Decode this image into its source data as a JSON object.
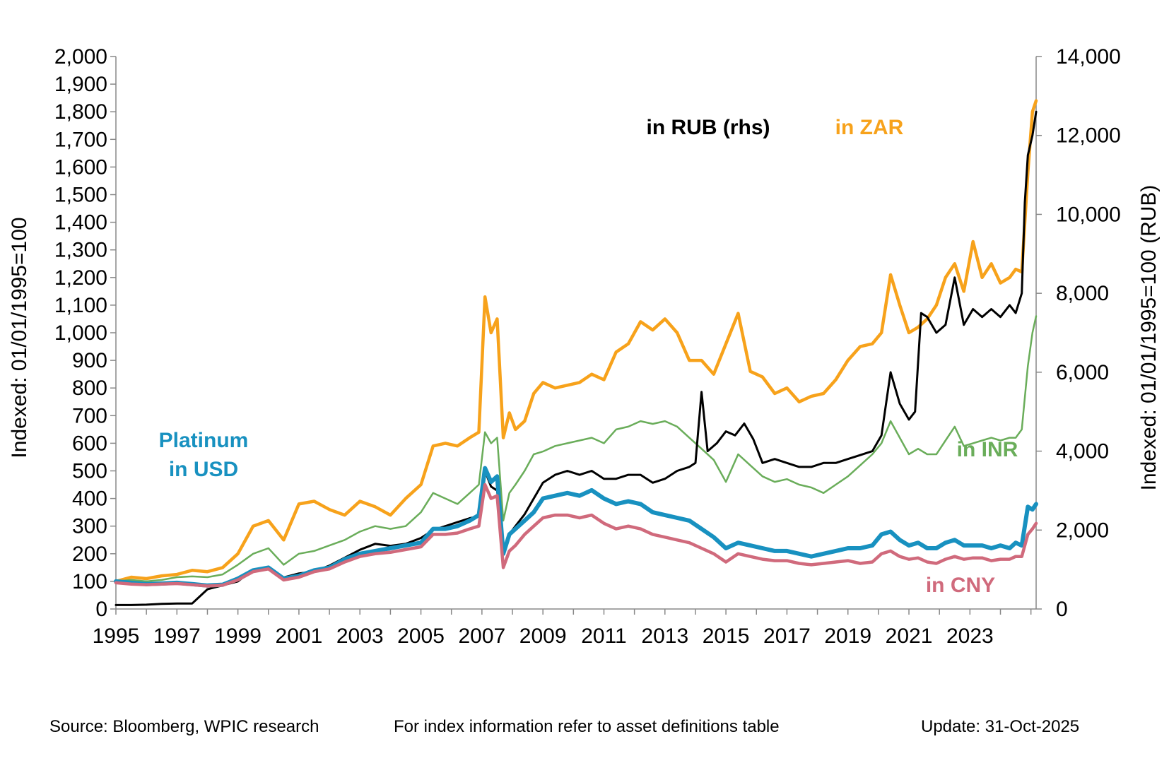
{
  "colors": {
    "usd": "#1891C0",
    "zar": "#F7A21B",
    "inr": "#6AAD5A",
    "cny": "#D06A7C",
    "rub": "#000000"
  },
  "labels": {
    "platinum_usd_line1": "Platinum",
    "platinum_usd_line2": "in USD",
    "rub": "in RUB (rhs)",
    "zar": "in ZAR",
    "inr": "in INR",
    "cny": "in CNY"
  },
  "footer": {
    "source": "Source: Bloomberg, WPIC research",
    "note": "For index information refer to asset definitions table",
    "update": "Update: 31-Oct-2025"
  },
  "chart_data": {
    "type": "line",
    "ylabel": "Indexed:  01/01/1995=100",
    "y2label": "Indexed:  01/01/1995=100  (RUB)",
    "ylim": [
      0,
      2000
    ],
    "y2lim": [
      0,
      14000
    ],
    "yticks": [
      "0",
      "100",
      "200",
      "300",
      "400",
      "500",
      "600",
      "700",
      "800",
      "900",
      "1,000",
      "1,100",
      "1,200",
      "1,300",
      "1,400",
      "1,500",
      "1,600",
      "1,700",
      "1,800",
      "1,900",
      "2,000"
    ],
    "y2ticks": [
      "0",
      "2,000",
      "4,000",
      "6,000",
      "8,000",
      "10,000",
      "12,000",
      "14,000"
    ],
    "xticks": [
      "1995",
      "1997",
      "1999",
      "2001",
      "2003",
      "2005",
      "2007",
      "2009",
      "2011",
      "2013",
      "2015",
      "2017",
      "2019",
      "2021",
      "2023"
    ],
    "xlim": [
      1995.0,
      2025.17
    ],
    "grid": false,
    "series": [
      {
        "name": "in ZAR",
        "axis": "left",
        "key": "zar",
        "x": [
          1995.0,
          1995.5,
          1996.0,
          1996.5,
          1997.0,
          1997.5,
          1998.0,
          1998.5,
          1999.0,
          1999.5,
          2000.0,
          2000.5,
          2001.0,
          2001.5,
          2002.0,
          2002.5,
          2003.0,
          2003.5,
          2004.0,
          2004.5,
          2005.0,
          2005.4,
          2005.8,
          2006.2,
          2006.6,
          2006.9,
          2007.1,
          2007.3,
          2007.5,
          2007.7,
          2007.9,
          2008.1,
          2008.4,
          2008.7,
          2009.0,
          2009.4,
          2009.8,
          2010.2,
          2010.6,
          2011.0,
          2011.4,
          2011.8,
          2012.2,
          2012.6,
          2013.0,
          2013.4,
          2013.8,
          2014.2,
          2014.6,
          2015.0,
          2015.4,
          2015.8,
          2016.2,
          2016.6,
          2017.0,
          2017.4,
          2017.8,
          2018.2,
          2018.6,
          2019.0,
          2019.4,
          2019.8,
          2020.1,
          2020.4,
          2020.7,
          2021.0,
          2021.3,
          2021.6,
          2021.9,
          2022.2,
          2022.5,
          2022.8,
          2023.1,
          2023.4,
          2023.7,
          2024.0,
          2024.3,
          2024.5,
          2024.7,
          2024.9,
          2025.05,
          2025.17
        ],
        "y": [
          100,
          115,
          110,
          120,
          125,
          140,
          135,
          150,
          200,
          300,
          320,
          250,
          380,
          390,
          360,
          340,
          390,
          370,
          340,
          400,
          450,
          590,
          600,
          590,
          620,
          640,
          1130,
          1000,
          1050,
          620,
          710,
          650,
          680,
          780,
          820,
          800,
          810,
          820,
          850,
          830,
          930,
          960,
          1040,
          1010,
          1050,
          1000,
          900,
          900,
          850,
          960,
          1070,
          860,
          840,
          780,
          800,
          750,
          770,
          780,
          830,
          900,
          950,
          960,
          1000,
          1210,
          1100,
          1000,
          1020,
          1050,
          1100,
          1200,
          1250,
          1150,
          1330,
          1200,
          1250,
          1180,
          1200,
          1230,
          1220,
          1580,
          1800,
          1840
        ]
      },
      {
        "name": "in INR",
        "axis": "left",
        "key": "inr",
        "x": [
          1995.0,
          1995.5,
          1996.0,
          1996.5,
          1997.0,
          1997.5,
          1998.0,
          1998.5,
          1999.0,
          1999.5,
          2000.0,
          2000.5,
          2001.0,
          2001.5,
          2002.0,
          2002.5,
          2003.0,
          2003.5,
          2004.0,
          2004.5,
          2005.0,
          2005.4,
          2005.8,
          2006.2,
          2006.6,
          2006.9,
          2007.1,
          2007.3,
          2007.5,
          2007.7,
          2007.9,
          2008.1,
          2008.4,
          2008.7,
          2009.0,
          2009.4,
          2009.8,
          2010.2,
          2010.6,
          2011.0,
          2011.4,
          2011.8,
          2012.2,
          2012.6,
          2013.0,
          2013.4,
          2013.8,
          2014.2,
          2014.6,
          2015.0,
          2015.4,
          2015.8,
          2016.2,
          2016.6,
          2017.0,
          2017.4,
          2017.8,
          2018.2,
          2018.6,
          2019.0,
          2019.4,
          2019.8,
          2020.1,
          2020.4,
          2020.7,
          2021.0,
          2021.3,
          2021.6,
          2021.9,
          2022.2,
          2022.5,
          2022.8,
          2023.1,
          2023.4,
          2023.7,
          2024.0,
          2024.3,
          2024.5,
          2024.7,
          2024.9,
          2025.05,
          2025.17
        ],
        "y": [
          100,
          105,
          100,
          105,
          115,
          118,
          115,
          125,
          160,
          200,
          220,
          160,
          200,
          210,
          230,
          250,
          280,
          300,
          290,
          300,
          350,
          420,
          400,
          380,
          420,
          450,
          640,
          600,
          620,
          320,
          420,
          450,
          500,
          560,
          570,
          590,
          600,
          610,
          620,
          600,
          650,
          660,
          680,
          670,
          680,
          660,
          620,
          580,
          540,
          460,
          560,
          520,
          480,
          460,
          470,
          450,
          440,
          420,
          450,
          480,
          520,
          560,
          600,
          680,
          620,
          560,
          580,
          560,
          560,
          610,
          660,
          590,
          600,
          610,
          620,
          610,
          620,
          620,
          650,
          880,
          1000,
          1060
        ]
      },
      {
        "name": "in RUB (rhs)",
        "axis": "right",
        "key": "rub",
        "x": [
          1995.0,
          1995.5,
          1996.0,
          1996.5,
          1997.0,
          1997.5,
          1998.0,
          1998.5,
          1999.0,
          1999.5,
          2000.0,
          2000.5,
          2001.0,
          2001.5,
          2002.0,
          2002.5,
          2003.0,
          2003.5,
          2004.0,
          2004.5,
          2005.0,
          2005.4,
          2005.8,
          2006.2,
          2006.6,
          2006.9,
          2007.1,
          2007.3,
          2007.5,
          2007.7,
          2007.9,
          2008.1,
          2008.4,
          2008.7,
          2009.0,
          2009.4,
          2009.8,
          2010.2,
          2010.6,
          2011.0,
          2011.4,
          2011.8,
          2012.2,
          2012.6,
          2013.0,
          2013.4,
          2013.8,
          2014.0,
          2014.2,
          2014.4,
          2014.7,
          2015.0,
          2015.3,
          2015.6,
          2015.9,
          2016.2,
          2016.6,
          2017.0,
          2017.4,
          2017.8,
          2018.2,
          2018.6,
          2019.0,
          2019.4,
          2019.8,
          2020.1,
          2020.4,
          2020.7,
          2021.0,
          2021.2,
          2021.4,
          2021.6,
          2021.9,
          2022.2,
          2022.5,
          2022.8,
          2023.1,
          2023.4,
          2023.7,
          2024.0,
          2024.3,
          2024.5,
          2024.7,
          2024.8,
          2024.9,
          2025.05,
          2025.17
        ],
        "y": [
          100,
          100,
          110,
          130,
          140,
          140,
          500,
          600,
          700,
          1000,
          1050,
          800,
          900,
          950,
          1100,
          1300,
          1500,
          1650,
          1600,
          1650,
          1800,
          2000,
          2100,
          2200,
          2300,
          2350,
          3500,
          3100,
          3000,
          1500,
          1900,
          2100,
          2400,
          2800,
          3200,
          3400,
          3500,
          3400,
          3500,
          3300,
          3300,
          3400,
          3400,
          3200,
          3300,
          3500,
          3600,
          3700,
          5500,
          4000,
          4200,
          4500,
          4400,
          4700,
          4300,
          3700,
          3800,
          3700,
          3600,
          3600,
          3700,
          3700,
          3800,
          3900,
          4000,
          4400,
          6000,
          5200,
          4800,
          5000,
          7500,
          7400,
          7000,
          7200,
          8400,
          7200,
          7600,
          7400,
          7600,
          7400,
          7700,
          7500,
          8000,
          10300,
          11500,
          12000,
          12600
        ]
      },
      {
        "name": "Platinum in USD",
        "axis": "left",
        "key": "usd",
        "x": [
          1995.0,
          1995.5,
          1996.0,
          1996.5,
          1997.0,
          1997.5,
          1998.0,
          1998.5,
          1999.0,
          1999.5,
          2000.0,
          2000.5,
          2001.0,
          2001.5,
          2002.0,
          2002.5,
          2003.0,
          2003.5,
          2004.0,
          2004.5,
          2005.0,
          2005.4,
          2005.8,
          2006.2,
          2006.6,
          2006.9,
          2007.1,
          2007.3,
          2007.5,
          2007.7,
          2007.9,
          2008.1,
          2008.4,
          2008.7,
          2009.0,
          2009.4,
          2009.8,
          2010.2,
          2010.6,
          2011.0,
          2011.4,
          2011.8,
          2012.2,
          2012.6,
          2013.0,
          2013.4,
          2013.8,
          2014.2,
          2014.6,
          2015.0,
          2015.4,
          2015.8,
          2016.2,
          2016.6,
          2017.0,
          2017.4,
          2017.8,
          2018.2,
          2018.6,
          2019.0,
          2019.4,
          2019.8,
          2020.1,
          2020.4,
          2020.7,
          2021.0,
          2021.3,
          2021.6,
          2021.9,
          2022.2,
          2022.5,
          2022.8,
          2023.1,
          2023.4,
          2023.7,
          2024.0,
          2024.3,
          2024.5,
          2024.7,
          2024.9,
          2025.05,
          2025.17
        ],
        "y": [
          100,
          95,
          90,
          92,
          95,
          90,
          85,
          88,
          110,
          140,
          150,
          110,
          120,
          140,
          150,
          180,
          200,
          210,
          220,
          230,
          240,
          290,
          290,
          300,
          320,
          340,
          510,
          460,
          480,
          200,
          270,
          290,
          320,
          350,
          400,
          410,
          420,
          410,
          430,
          400,
          380,
          390,
          380,
          350,
          340,
          330,
          320,
          290,
          260,
          220,
          240,
          230,
          220,
          210,
          210,
          200,
          190,
          200,
          210,
          220,
          220,
          230,
          270,
          280,
          250,
          230,
          240,
          220,
          220,
          240,
          250,
          230,
          230,
          230,
          220,
          230,
          220,
          240,
          230,
          370,
          360,
          380
        ]
      },
      {
        "name": "in CNY",
        "axis": "left",
        "key": "cny",
        "x": [
          1995.0,
          1995.5,
          1996.0,
          1996.5,
          1997.0,
          1997.5,
          1998.0,
          1998.5,
          1999.0,
          1999.5,
          2000.0,
          2000.5,
          2001.0,
          2001.5,
          2002.0,
          2002.5,
          2003.0,
          2003.5,
          2004.0,
          2004.5,
          2005.0,
          2005.4,
          2005.8,
          2006.2,
          2006.6,
          2006.9,
          2007.1,
          2007.3,
          2007.5,
          2007.7,
          2007.9,
          2008.1,
          2008.4,
          2008.7,
          2009.0,
          2009.4,
          2009.8,
          2010.2,
          2010.6,
          2011.0,
          2011.4,
          2011.8,
          2012.2,
          2012.6,
          2013.0,
          2013.4,
          2013.8,
          2014.2,
          2014.6,
          2015.0,
          2015.4,
          2015.8,
          2016.2,
          2016.6,
          2017.0,
          2017.4,
          2017.8,
          2018.2,
          2018.6,
          2019.0,
          2019.4,
          2019.8,
          2020.1,
          2020.4,
          2020.7,
          2021.0,
          2021.3,
          2021.6,
          2021.9,
          2022.2,
          2022.5,
          2022.8,
          2023.1,
          2023.4,
          2023.7,
          2024.0,
          2024.3,
          2024.5,
          2024.7,
          2024.9,
          2025.05,
          2025.17
        ],
        "y": [
          95,
          90,
          88,
          90,
          92,
          88,
          83,
          86,
          105,
          135,
          145,
          105,
          115,
          135,
          145,
          170,
          190,
          200,
          205,
          215,
          225,
          270,
          270,
          275,
          290,
          300,
          450,
          400,
          410,
          150,
          210,
          230,
          270,
          300,
          330,
          340,
          340,
          330,
          340,
          310,
          290,
          300,
          290,
          270,
          260,
          250,
          240,
          220,
          200,
          170,
          200,
          190,
          180,
          175,
          175,
          165,
          160,
          165,
          170,
          175,
          165,
          170,
          200,
          210,
          190,
          180,
          185,
          170,
          165,
          180,
          190,
          180,
          185,
          185,
          175,
          180,
          180,
          190,
          190,
          270,
          290,
          310
        ]
      }
    ]
  }
}
